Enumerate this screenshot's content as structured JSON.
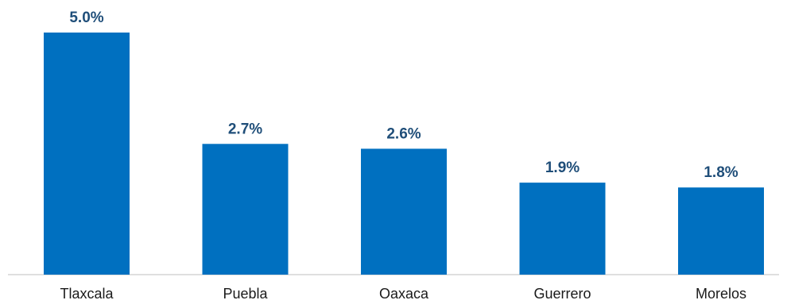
{
  "chart_data": {
    "type": "bar",
    "categories": [
      "Tlaxcala",
      "Puebla",
      "Oaxaca",
      "Guerrero",
      "Morelos"
    ],
    "values": [
      5.0,
      2.7,
      2.6,
      1.9,
      1.8
    ],
    "value_labels": [
      "5.0%",
      "2.7%",
      "2.6%",
      "1.9%",
      "1.8%"
    ],
    "title": "",
    "xlabel": "",
    "ylabel": "",
    "ylim": [
      0,
      5.0
    ],
    "grid": false,
    "legend": "none"
  },
  "colors": {
    "bar": "#0070C0",
    "value_label": "#1F4E79",
    "axis": "#bfbfbf"
  }
}
